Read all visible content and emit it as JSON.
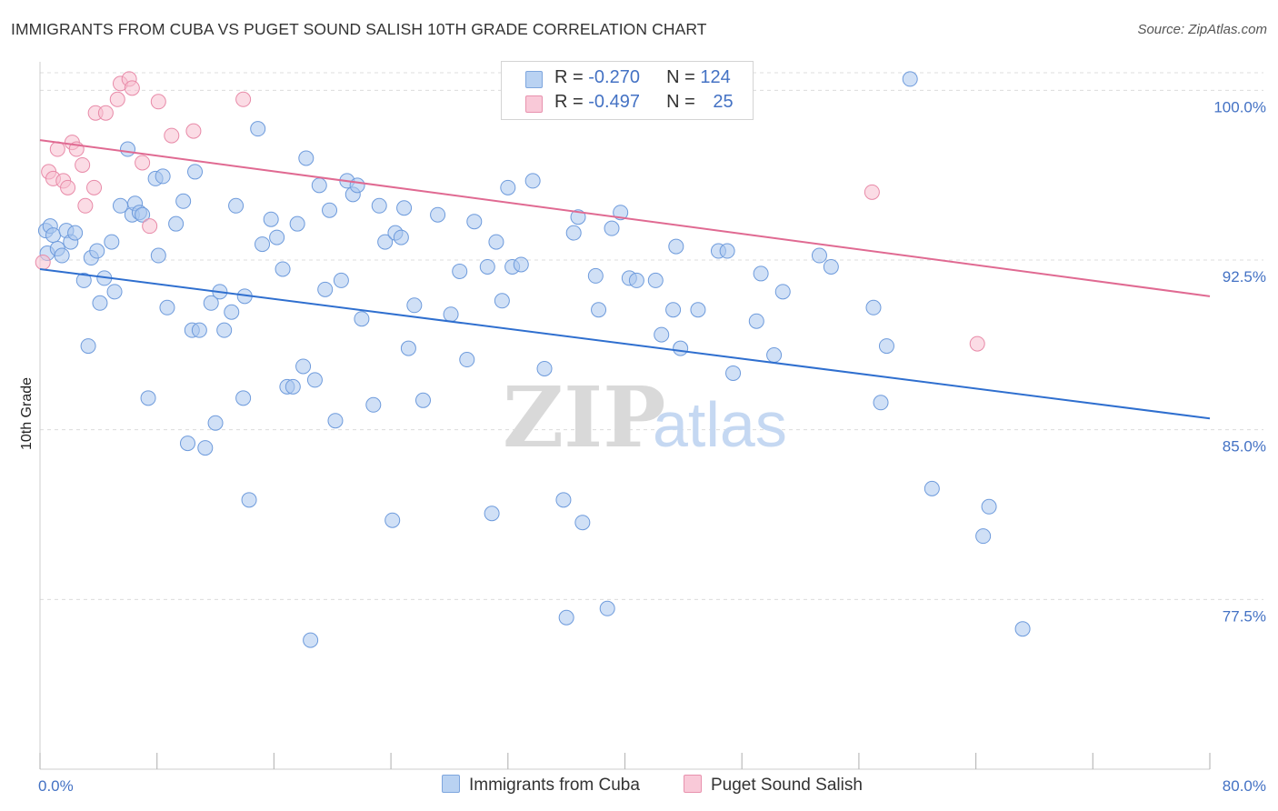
{
  "title": "IMMIGRANTS FROM CUBA VS PUGET SOUND SALISH 10TH GRADE CORRELATION CHART",
  "source": "Source: ZipAtlas.com",
  "watermark": {
    "part1": "ZIP",
    "part2": "atlas"
  },
  "legend": [
    {
      "r_label": "R = ",
      "r_value": "-0.270",
      "n_label": "N = ",
      "n_value": "124"
    },
    {
      "r_label": "R = ",
      "r_value": "-0.497",
      "n_label": "N = ",
      "n_value": "25"
    }
  ],
  "bottom_legend": [
    {
      "label": "Immigrants from Cuba"
    },
    {
      "label": "Puget Sound Salish"
    }
  ],
  "chart_data": {
    "type": "scatter",
    "title": "IMMIGRANTS FROM CUBA VS PUGET SOUND SALISH 10TH GRADE CORRELATION CHART",
    "xlabel": "",
    "ylabel": "10th Grade",
    "xlim": [
      0,
      80
    ],
    "ylim": [
      70,
      101.5
    ],
    "x_tick_labels": [
      "0.0%",
      "80.0%"
    ],
    "y_ticks": [
      {
        "value": 77.5,
        "label": "77.5%"
      },
      {
        "value": 85.0,
        "label": "85.0%"
      },
      {
        "value": 92.5,
        "label": "92.5%"
      },
      {
        "value": 100.0,
        "label": "100.0%"
      }
    ],
    "grid": true,
    "series": [
      {
        "name": "Immigrants from Cuba",
        "color": "#a9c6ee",
        "stroke": "#6e9bdc",
        "line_color": "#2f6fcf",
        "trend": {
          "x": [
            0,
            80
          ],
          "y": [
            92.1,
            85.5
          ]
        },
        "points": [
          [
            0.4,
            93.8
          ],
          [
            0.5,
            92.8
          ],
          [
            0.7,
            94.0
          ],
          [
            0.9,
            93.6
          ],
          [
            1.2,
            93.0
          ],
          [
            1.5,
            92.7
          ],
          [
            1.8,
            93.8
          ],
          [
            2.1,
            93.3
          ],
          [
            2.4,
            93.7
          ],
          [
            3.0,
            91.6
          ],
          [
            3.3,
            88.7
          ],
          [
            3.5,
            92.6
          ],
          [
            3.9,
            92.9
          ],
          [
            4.1,
            90.6
          ],
          [
            4.4,
            91.7
          ],
          [
            4.9,
            93.3
          ],
          [
            5.1,
            91.1
          ],
          [
            5.5,
            94.9
          ],
          [
            6.0,
            97.4
          ],
          [
            6.3,
            94.5
          ],
          [
            6.5,
            95.0
          ],
          [
            6.8,
            94.6
          ],
          [
            7.0,
            94.5
          ],
          [
            7.4,
            86.4
          ],
          [
            7.9,
            96.1
          ],
          [
            8.1,
            92.7
          ],
          [
            8.4,
            96.2
          ],
          [
            8.7,
            90.4
          ],
          [
            9.3,
            94.1
          ],
          [
            9.8,
            95.1
          ],
          [
            10.1,
            84.4
          ],
          [
            10.4,
            89.4
          ],
          [
            10.6,
            96.4
          ],
          [
            10.9,
            89.4
          ],
          [
            11.3,
            84.2
          ],
          [
            11.7,
            90.6
          ],
          [
            12.0,
            85.3
          ],
          [
            12.3,
            91.1
          ],
          [
            12.6,
            89.4
          ],
          [
            13.1,
            90.2
          ],
          [
            13.4,
            94.9
          ],
          [
            13.9,
            86.4
          ],
          [
            14.0,
            90.9
          ],
          [
            14.3,
            81.9
          ],
          [
            14.9,
            98.3
          ],
          [
            15.2,
            93.2
          ],
          [
            15.8,
            94.3
          ],
          [
            16.2,
            93.5
          ],
          [
            16.6,
            92.1
          ],
          [
            16.9,
            86.9
          ],
          [
            17.3,
            86.9
          ],
          [
            17.6,
            94.1
          ],
          [
            18.0,
            87.8
          ],
          [
            18.2,
            97.0
          ],
          [
            18.5,
            75.7
          ],
          [
            18.8,
            87.2
          ],
          [
            19.1,
            95.8
          ],
          [
            19.5,
            91.2
          ],
          [
            19.8,
            94.7
          ],
          [
            20.2,
            85.4
          ],
          [
            20.6,
            91.6
          ],
          [
            21.0,
            96.0
          ],
          [
            21.4,
            95.4
          ],
          [
            21.7,
            95.8
          ],
          [
            22.0,
            89.9
          ],
          [
            22.8,
            86.1
          ],
          [
            23.2,
            94.9
          ],
          [
            23.6,
            93.3
          ],
          [
            24.1,
            81.0
          ],
          [
            24.3,
            93.7
          ],
          [
            24.7,
            93.5
          ],
          [
            24.9,
            94.8
          ],
          [
            25.2,
            88.6
          ],
          [
            25.6,
            90.5
          ],
          [
            26.2,
            86.3
          ],
          [
            27.2,
            94.5
          ],
          [
            28.1,
            90.1
          ],
          [
            28.7,
            92.0
          ],
          [
            29.2,
            88.1
          ],
          [
            29.7,
            94.2
          ],
          [
            30.6,
            92.2
          ],
          [
            30.9,
            81.3
          ],
          [
            31.2,
            93.3
          ],
          [
            31.6,
            90.7
          ],
          [
            32.0,
            95.7
          ],
          [
            32.3,
            92.2
          ],
          [
            32.9,
            92.3
          ],
          [
            33.7,
            96.0
          ],
          [
            34.5,
            87.7
          ],
          [
            35.8,
            81.9
          ],
          [
            36.0,
            76.7
          ],
          [
            36.5,
            93.7
          ],
          [
            36.8,
            94.4
          ],
          [
            37.1,
            80.9
          ],
          [
            38.0,
            91.8
          ],
          [
            38.2,
            90.3
          ],
          [
            38.8,
            77.1
          ],
          [
            39.1,
            93.9
          ],
          [
            39.7,
            94.6
          ],
          [
            40.3,
            91.7
          ],
          [
            40.8,
            91.6
          ],
          [
            42.1,
            91.6
          ],
          [
            42.5,
            89.2
          ],
          [
            43.3,
            90.3
          ],
          [
            43.5,
            93.1
          ],
          [
            43.8,
            88.6
          ],
          [
            45.0,
            90.3
          ],
          [
            46.4,
            92.9
          ],
          [
            47.0,
            92.9
          ],
          [
            47.4,
            87.5
          ],
          [
            49.0,
            89.8
          ],
          [
            49.3,
            91.9
          ],
          [
            50.2,
            88.3
          ],
          [
            50.8,
            91.1
          ],
          [
            54.1,
            92.2
          ],
          [
            57.0,
            90.4
          ],
          [
            57.5,
            86.2
          ],
          [
            57.9,
            88.7
          ],
          [
            59.5,
            100.5
          ],
          [
            61.0,
            82.4
          ],
          [
            64.5,
            80.3
          ],
          [
            64.9,
            81.6
          ],
          [
            67.2,
            76.2
          ],
          [
            53.3,
            92.7
          ]
        ]
      },
      {
        "name": "Puget Sound Salish",
        "color": "#f7bfd0",
        "stroke": "#e88aa8",
        "line_color": "#e06a92",
        "trend": {
          "x": [
            0,
            80
          ],
          "y": [
            97.8,
            90.9
          ]
        },
        "points": [
          [
            0.2,
            92.4
          ],
          [
            0.6,
            96.4
          ],
          [
            0.9,
            96.1
          ],
          [
            1.2,
            97.4
          ],
          [
            1.6,
            96.0
          ],
          [
            1.9,
            95.7
          ],
          [
            2.2,
            97.7
          ],
          [
            2.5,
            97.4
          ],
          [
            2.9,
            96.7
          ],
          [
            3.1,
            94.9
          ],
          [
            3.7,
            95.7
          ],
          [
            3.8,
            99.0
          ],
          [
            4.5,
            99.0
          ],
          [
            5.3,
            99.6
          ],
          [
            5.5,
            100.3
          ],
          [
            6.1,
            100.5
          ],
          [
            6.3,
            100.1
          ],
          [
            7.0,
            96.8
          ],
          [
            7.5,
            94.0
          ],
          [
            8.1,
            99.5
          ],
          [
            9.0,
            98.0
          ],
          [
            10.5,
            98.2
          ],
          [
            13.9,
            99.6
          ],
          [
            56.9,
            95.5
          ],
          [
            64.1,
            88.8
          ]
        ]
      }
    ]
  }
}
